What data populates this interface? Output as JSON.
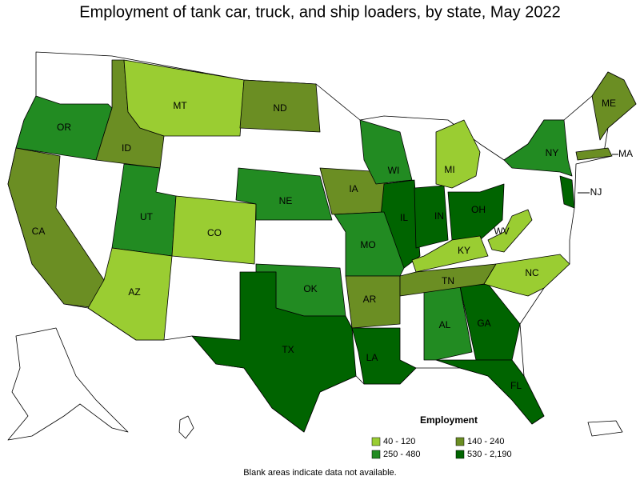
{
  "title": "Employment of tank car, truck, and ship loaders, by state, May 2022",
  "legend": {
    "title": "Employment",
    "items": [
      {
        "label": "40 - 120",
        "color": "#9acd32"
      },
      {
        "label": "140 - 240",
        "color": "#6b8e23"
      },
      {
        "label": "250 - 480",
        "color": "#228b22"
      },
      {
        "label": "530 - 2,190",
        "color": "#006400"
      }
    ]
  },
  "states": [
    {
      "label": "OR",
      "color": "#228b22"
    },
    {
      "label": "ID",
      "color": "#6b8e23"
    },
    {
      "label": "MT",
      "color": "#9acd32"
    },
    {
      "label": "ND",
      "color": "#6b8e23"
    },
    {
      "label": "CA",
      "color": "#6b8e23"
    },
    {
      "label": "UT",
      "color": "#228b22"
    },
    {
      "label": "CO",
      "color": "#9acd32"
    },
    {
      "label": "AZ",
      "color": "#9acd32"
    },
    {
      "label": "NE",
      "color": "#228b22"
    },
    {
      "label": "IA",
      "color": "#6b8e23"
    },
    {
      "label": "WI",
      "color": "#228b22"
    },
    {
      "label": "IL",
      "color": "#006400"
    },
    {
      "label": "IN",
      "color": "#006400"
    },
    {
      "label": "OH",
      "color": "#006400"
    },
    {
      "label": "MI",
      "color": "#9acd32"
    },
    {
      "label": "MO",
      "color": "#228b22"
    },
    {
      "label": "OK",
      "color": "#228b22"
    },
    {
      "label": "AR",
      "color": "#6b8e23"
    },
    {
      "label": "TX",
      "color": "#006400"
    },
    {
      "label": "LA",
      "color": "#006400"
    },
    {
      "label": "AL",
      "color": "#228b22"
    },
    {
      "label": "GA",
      "color": "#006400"
    },
    {
      "label": "FL",
      "color": "#006400"
    },
    {
      "label": "TN",
      "color": "#6b8e23"
    },
    {
      "label": "KY",
      "color": "#9acd32"
    },
    {
      "label": "WV",
      "color": "#9acd32"
    },
    {
      "label": "NC",
      "color": "#9acd32"
    },
    {
      "label": "NY",
      "color": "#228b22"
    },
    {
      "label": "ME",
      "color": "#6b8e23"
    },
    {
      "label": "MA",
      "color": "#6b8e23"
    },
    {
      "label": "NJ",
      "color": "#006400"
    }
  ],
  "footnote": "Blank areas indicate data not available."
}
